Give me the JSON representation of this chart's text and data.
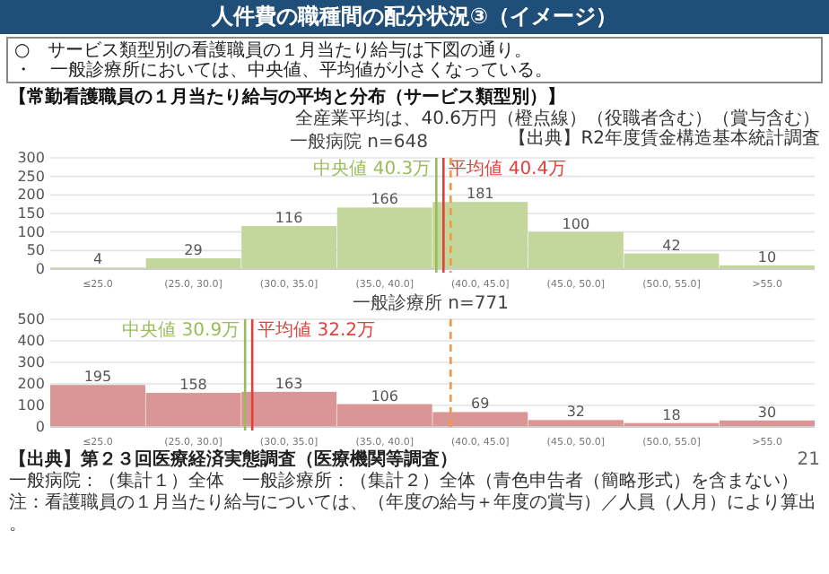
{
  "chart_data": [
    {
      "type": "bar",
      "title": "一般病院 n=648",
      "annotations": [
        "人件費の職種間の配分状況③（イメージ）",
        "○　サービス類型別の看護職員の１月当たり給与は下図の通り。",
        "・　一般診療所においては、中央値、平均値が小さくなっている。",
        "【常勤看護職員の１月当たり給与の平均と分布（サービス類型別）】",
        "全産業平均は、40.6万円（橙点線）（役職者含む）（賞与含む）",
        "【出典】R2年度賃金構造基本統計調査"
      ],
      "categories": [
        "≤25.0",
        "(25.0, 30.0]",
        "(30.0, 35.0]",
        "(35.0, 40.0]",
        "(40.0, 45.0]",
        "(45.0, 50.0]",
        "(50.0, 55.0]",
        ">55.0"
      ],
      "values": [
        4,
        29,
        116,
        166,
        181,
        100,
        42,
        10
      ],
      "color": "#c3d69b",
      "ylim": [
        0,
        300
      ],
      "yticks": [
        0,
        50,
        100,
        150,
        200,
        250,
        300
      ],
      "grid": "y",
      "data_labels": true,
      "ref_lines": [
        {
          "axis": "x",
          "value": "(40.0, 45.0]",
          "label": "中央値 40.3万",
          "color": "#9bbb59"
        },
        {
          "axis": "x",
          "value": "(40.0, 45.0]",
          "label": "平均値 40.4万",
          "color": "#e0403a"
        },
        {
          "axis": "x",
          "value": "(40.0, 45.0]",
          "label": null,
          "color": "#f79646",
          "line_style": "dashed"
        }
      ]
    },
    {
      "type": "bar",
      "title": "一般診療所 n=771",
      "annotations": [
        "【出典】第２３回医療経済実態調査（医療機関等調査）",
        "一般病院：（集計１）全体　一般診療所：（集計２）全体（青色申告者（簡略形式）を含まない）",
        "注：看護職員の１月当たり給与については、（年度の給与＋年度の賞与）／人員（人月）により算出。",
        "21"
      ],
      "categories": [
        "≤25.0",
        "(25.0, 30.0]",
        "(30.0, 35.0]",
        "(35.0, 40.0]",
        "(40.0, 45.0]",
        "(45.0, 50.0]",
        "(50.0, 55.0]",
        ">55.0"
      ],
      "values": [
        195,
        158,
        163,
        106,
        69,
        32,
        18,
        30
      ],
      "color": "#d99694",
      "ylim": [
        0,
        500
      ],
      "yticks": [
        0,
        100,
        200,
        300,
        400,
        500
      ],
      "grid": "y",
      "data_labels": true,
      "ref_lines": [
        {
          "axis": "x",
          "value": "(30.0, 35.0]",
          "label": "中央値 30.9万",
          "color": "#9bbb59"
        },
        {
          "axis": "x",
          "value": "(30.0, 35.0]",
          "label": "平均値 32.2万",
          "color": "#e0403a"
        },
        {
          "axis": "x",
          "value": "(40.0, 45.0]",
          "label": null,
          "color": "#f79646",
          "line_style": "dashed"
        }
      ]
    }
  ]
}
